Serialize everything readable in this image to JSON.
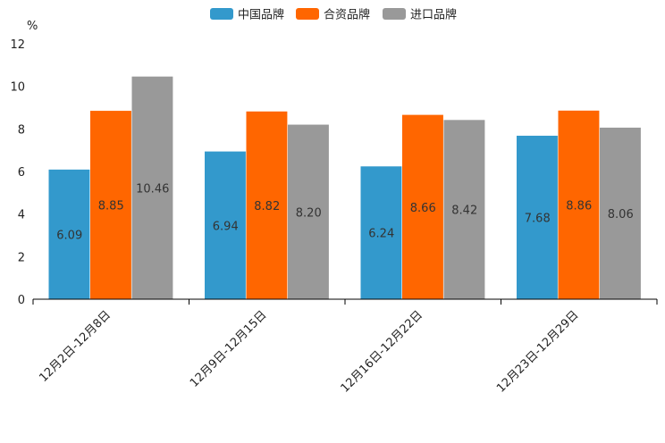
{
  "chart_data": {
    "type": "bar",
    "ylabel": "%",
    "ylim": [
      0,
      12
    ],
    "yticks": [
      0,
      2,
      4,
      6,
      8,
      10,
      12
    ],
    "legend_position": "top-center",
    "categories": [
      "12月2日-12月8日",
      "12月9日-12月15日",
      "12月16日-12月22日",
      "12月23日-12月29日"
    ],
    "series": [
      {
        "name": "中国品牌",
        "color": "#3399cc",
        "values": [
          6.09,
          6.94,
          6.24,
          7.68
        ],
        "labels": [
          "6.09",
          "6.94",
          "6.24",
          "7.68"
        ]
      },
      {
        "name": "合资品牌",
        "color": "#ff6600",
        "values": [
          8.85,
          8.82,
          8.66,
          8.86
        ],
        "labels": [
          "8.85",
          "8.82",
          "8.66",
          "8.86"
        ]
      },
      {
        "name": "进口品牌",
        "color": "#999999",
        "values": [
          10.46,
          8.2,
          8.42,
          8.06
        ],
        "labels": [
          "10.46",
          "8.20",
          "8.42",
          "8.06"
        ]
      }
    ]
  }
}
